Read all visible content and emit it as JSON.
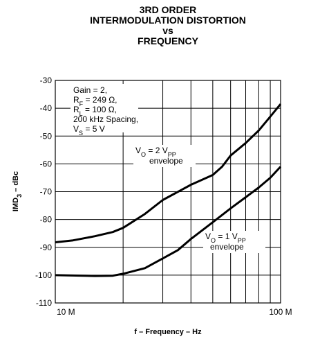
{
  "chart_data": {
    "type": "line",
    "title": [
      "3RD ORDER",
      "INTERMODULATION DISTORTION",
      "vs",
      "FREQUENCY"
    ],
    "xlabel": "f – Frequency – Hz",
    "ylabel": [
      "IMD",
      "3",
      " – dBc"
    ],
    "xscale": "log",
    "xlim": [
      10000000,
      100000000
    ],
    "xticks": [
      {
        "value": 10000000,
        "label": "10 M"
      },
      {
        "value": 100000000,
        "label": "100 M"
      }
    ],
    "xminorticks": [
      20000000,
      30000000,
      40000000,
      50000000,
      60000000,
      70000000,
      80000000,
      90000000
    ],
    "ylim": [
      -110,
      -30
    ],
    "yticks": [
      -110,
      -100,
      -90,
      -80,
      -70,
      -60,
      -50,
      -40,
      -30
    ],
    "grid": true,
    "annotations": [
      [
        "Gain = 2,"
      ],
      [
        "R",
        "F",
        " = 249 Ω,"
      ],
      [
        "R",
        "L",
        " = 100 Ω,"
      ],
      [
        "200 kHz Spacing,"
      ],
      [
        "V",
        "S",
        " = 5 V"
      ]
    ],
    "series": [
      {
        "name": [
          [
            "V",
            "O",
            " = 2 V",
            "PP"
          ],
          [
            "envelope"
          ]
        ],
        "color": "#000000",
        "x": [
          10000000,
          12000000,
          15000000,
          18000000,
          20000000,
          25000000,
          30000000,
          40000000,
          50000000,
          55000000,
          60000000,
          70000000,
          80000000,
          90000000,
          100000000
        ],
        "values": [
          -88.2,
          -87.5,
          -86,
          -84.5,
          -83,
          -78,
          -73,
          -67.5,
          -64,
          -61,
          -57,
          -52.5,
          -48,
          -43,
          -38.5
        ]
      },
      {
        "name": [
          [
            "V",
            "O",
            " = 1 V",
            "PP"
          ],
          [
            "envelope"
          ]
        ],
        "color": "#000000",
        "x": [
          10000000,
          15000000,
          18000000,
          20000000,
          25000000,
          30000000,
          35000000,
          40000000,
          50000000,
          60000000,
          70000000,
          80000000,
          90000000,
          100000000
        ],
        "values": [
          -100,
          -100.3,
          -100.2,
          -99.5,
          -97.5,
          -94,
          -91,
          -87,
          -81,
          -76,
          -72,
          -68.5,
          -65,
          -61
        ]
      }
    ]
  }
}
